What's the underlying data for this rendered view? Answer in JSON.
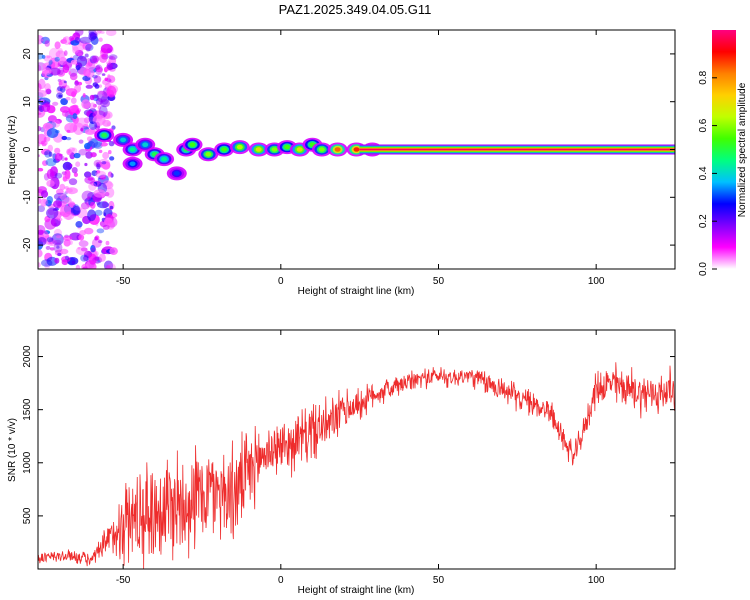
{
  "title": "PAZ1.2025.349.04.05.G11",
  "colors": {
    "trace": "#ee2c2c",
    "axis": "#000000",
    "background": "#ffffff"
  },
  "chart_data": [
    {
      "type": "heatmap",
      "name": "spectrogram",
      "xlabel": "Height of straight line (km)",
      "ylabel": "Frequency (Hz)",
      "xlim": [
        -77,
        125
      ],
      "ylim": [
        -25,
        25
      ],
      "xticks": [
        -50,
        0,
        50,
        100
      ],
      "yticks": [
        -20,
        -10,
        0,
        10,
        20
      ],
      "xtick_labels": [
        "-50",
        "0",
        "50",
        "100"
      ],
      "ytick_labels": [
        "-20",
        "-10",
        "0",
        "10",
        "20"
      ],
      "colorbar": {
        "label": "Normalized spectral amplitude",
        "range": [
          0,
          1
        ],
        "ticks": [
          0.0,
          0.2,
          0.4,
          0.6,
          0.8
        ],
        "tick_labels": [
          "0.0",
          "0.2",
          "0.4",
          "0.6",
          "0.8"
        ],
        "colormap": [
          "#ffffff",
          "#ff00ff",
          "#8000ff",
          "#0000ff",
          "#00c0ff",
          "#00ff80",
          "#40ff00",
          "#c0ff00",
          "#ffd000",
          "#ff8000",
          "#ff0000",
          "#ff0080"
        ]
      },
      "carrier_line": {
        "freq_hz": 0,
        "x_start": 25,
        "x_end": 125,
        "amplitude": 0.97
      },
      "blobs": [
        {
          "x": -56,
          "y": 3,
          "a": 0.5
        },
        {
          "x": -50,
          "y": 2,
          "a": 0.4
        },
        {
          "x": -47,
          "y": 0,
          "a": 0.45
        },
        {
          "x": -47,
          "y": -3,
          "a": 0.35
        },
        {
          "x": -43,
          "y": 1,
          "a": 0.4
        },
        {
          "x": -40,
          "y": -1,
          "a": 0.5
        },
        {
          "x": -37,
          "y": -2,
          "a": 0.45
        },
        {
          "x": -33,
          "y": -5,
          "a": 0.3
        },
        {
          "x": -30,
          "y": 0,
          "a": 0.5
        },
        {
          "x": -28,
          "y": 1,
          "a": 0.55
        },
        {
          "x": -23,
          "y": -1,
          "a": 0.6
        },
        {
          "x": -18,
          "y": 0,
          "a": 0.55
        },
        {
          "x": -13,
          "y": 0.5,
          "a": 0.65
        },
        {
          "x": -7,
          "y": 0,
          "a": 0.7
        },
        {
          "x": -2,
          "y": 0,
          "a": 0.6
        },
        {
          "x": 2,
          "y": 0.5,
          "a": 0.55
        },
        {
          "x": 6,
          "y": 0,
          "a": 0.7
        },
        {
          "x": 10,
          "y": 1,
          "a": 0.55
        },
        {
          "x": 13,
          "y": 0,
          "a": 0.6
        },
        {
          "x": 18,
          "y": 0,
          "a": 0.85
        },
        {
          "x": 24,
          "y": 0,
          "a": 0.9
        },
        {
          "x": 29,
          "y": 0,
          "a": 0.9
        }
      ],
      "noise_region": {
        "x_start": -77,
        "x_end": -53,
        "ylim": [
          -25,
          25
        ]
      }
    },
    {
      "type": "line",
      "name": "snr",
      "xlabel": "Height of straight line (km)",
      "ylabel": "SNR (10 * v/v)",
      "xlim": [
        -77,
        125
      ],
      "ylim": [
        0,
        2250
      ],
      "xticks": [
        -50,
        0,
        50,
        100
      ],
      "yticks": [
        500,
        1000,
        1500,
        2000
      ],
      "xtick_labels": [
        "-50",
        "0",
        "50",
        "100"
      ],
      "ytick_labels": [
        "500",
        "1000",
        "1500",
        "2000"
      ],
      "x": [
        -77,
        -70,
        -65,
        -60,
        -55,
        -50,
        -45,
        -40,
        -35,
        -30,
        -25,
        -20,
        -15,
        -10,
        -5,
        0,
        5,
        10,
        15,
        20,
        25,
        30,
        35,
        40,
        45,
        50,
        55,
        60,
        65,
        70,
        75,
        80,
        85,
        90,
        93,
        96,
        100,
        105,
        110,
        115,
        120,
        125
      ],
      "mean": [
        100,
        120,
        120,
        80,
        250,
        450,
        500,
        550,
        600,
        650,
        700,
        750,
        700,
        900,
        1100,
        1150,
        1200,
        1300,
        1350,
        1500,
        1550,
        1650,
        1700,
        1750,
        1800,
        1820,
        1800,
        1820,
        1750,
        1700,
        1620,
        1550,
        1500,
        1200,
        1050,
        1300,
        1700,
        1750,
        1700,
        1650,
        1650,
        1700
      ],
      "spread": [
        80,
        80,
        80,
        80,
        200,
        500,
        600,
        650,
        700,
        650,
        600,
        550,
        600,
        500,
        350,
        300,
        350,
        350,
        300,
        250,
        200,
        150,
        150,
        120,
        120,
        120,
        120,
        120,
        150,
        150,
        150,
        150,
        150,
        150,
        150,
        150,
        200,
        250,
        250,
        250,
        250,
        250
      ]
    }
  ]
}
